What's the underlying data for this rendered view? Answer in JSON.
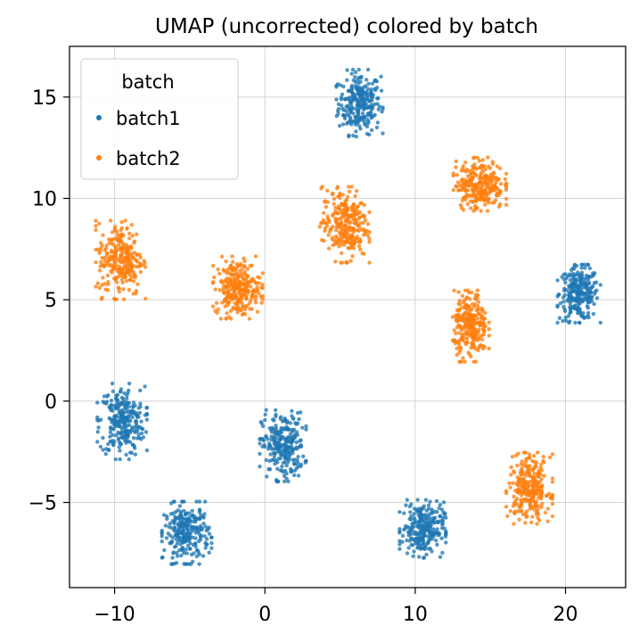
{
  "chart_data": {
    "type": "scatter",
    "title": "UMAP (uncorrected) colored by batch",
    "xlabel": "",
    "ylabel": "",
    "xlim": [
      -13,
      24
    ],
    "ylim": [
      -9.2,
      17.5
    ],
    "xticks": [
      -10,
      0,
      10,
      20
    ],
    "yticks": [
      -5,
      0,
      5,
      10,
      15
    ],
    "xtick_labels": [
      "−10",
      "0",
      "10",
      "20"
    ],
    "ytick_labels": [
      "−5",
      "0",
      "5",
      "10",
      "15"
    ],
    "grid": true,
    "legend": {
      "title": "batch",
      "placement": "top-left"
    },
    "series": [
      {
        "name": "batch1",
        "color": "#1f77b4",
        "clusters": [
          {
            "cx": 6.3,
            "cy": 14.7,
            "sx": 0.7,
            "sy": 0.75,
            "n": 260
          },
          {
            "cx": 20.9,
            "cy": 5.3,
            "sx": 0.65,
            "sy": 0.65,
            "n": 260
          },
          {
            "cx": -9.5,
            "cy": -1.0,
            "sx": 0.75,
            "sy": 0.85,
            "n": 260
          },
          {
            "cx": 1.2,
            "cy": -2.2,
            "sx": 0.7,
            "sy": 0.8,
            "n": 260
          },
          {
            "cx": -5.2,
            "cy": -6.5,
            "sx": 0.75,
            "sy": 0.7,
            "n": 260
          },
          {
            "cx": 10.5,
            "cy": -6.3,
            "sx": 0.7,
            "sy": 0.65,
            "n": 260
          }
        ]
      },
      {
        "name": "batch2",
        "color": "#ff7f0e",
        "clusters": [
          {
            "cx": -9.6,
            "cy": 7.0,
            "sx": 0.75,
            "sy": 0.9,
            "n": 260
          },
          {
            "cx": -1.8,
            "cy": 5.6,
            "sx": 0.75,
            "sy": 0.7,
            "n": 260
          },
          {
            "cx": 5.3,
            "cy": 8.7,
            "sx": 0.75,
            "sy": 0.85,
            "n": 260
          },
          {
            "cx": 14.3,
            "cy": 10.7,
            "sx": 0.8,
            "sy": 0.6,
            "n": 260
          },
          {
            "cx": 13.7,
            "cy": 3.7,
            "sx": 0.55,
            "sy": 0.8,
            "n": 260
          },
          {
            "cx": 17.6,
            "cy": -4.3,
            "sx": 0.7,
            "sy": 0.8,
            "n": 260
          }
        ]
      }
    ]
  }
}
